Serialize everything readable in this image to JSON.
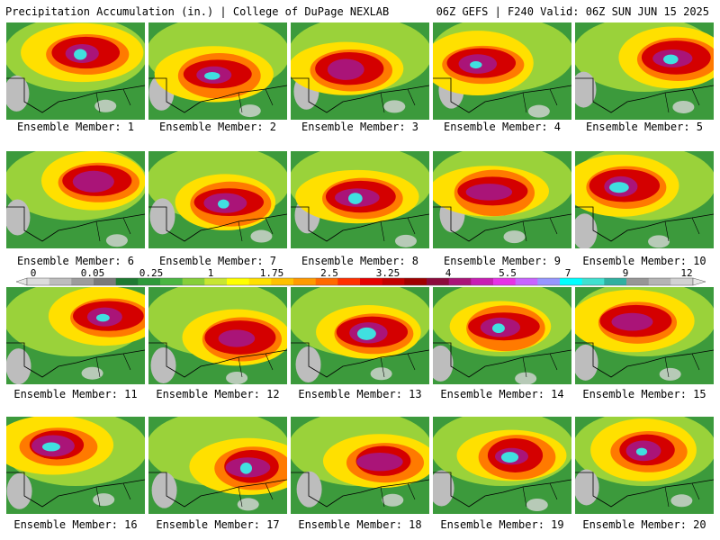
{
  "header": {
    "left": "Precipitation Accumulation (in.) | College of DuPage NEXLAB",
    "right": "06Z GEFS | F240 Valid: 06Z SUN JUN 15 2025"
  },
  "members": [
    {
      "label": "Ensemble Member: 1"
    },
    {
      "label": "Ensemble Member: 2"
    },
    {
      "label": "Ensemble Member: 3"
    },
    {
      "label": "Ensemble Member: 4"
    },
    {
      "label": "Ensemble Member: 5"
    },
    {
      "label": "Ensemble Member: 6"
    },
    {
      "label": "Ensemble Member: 7"
    },
    {
      "label": "Ensemble Member: 8"
    },
    {
      "label": "Ensemble Member: 9"
    },
    {
      "label": "Ensemble Member: 10"
    },
    {
      "label": "Ensemble Member: 11"
    },
    {
      "label": "Ensemble Member: 12"
    },
    {
      "label": "Ensemble Member: 13"
    },
    {
      "label": "Ensemble Member: 14"
    },
    {
      "label": "Ensemble Member: 15"
    },
    {
      "label": "Ensemble Member: 16"
    },
    {
      "label": "Ensemble Member: 17"
    },
    {
      "label": "Ensemble Member: 18"
    },
    {
      "label": "Ensemble Member: 19"
    },
    {
      "label": "Ensemble Member: 20"
    }
  ],
  "colorbar": {
    "labels": [
      "0",
      "0.05",
      "0.25",
      "1",
      "1.75",
      "2.5",
      "3.25",
      "4",
      "5.5",
      "7",
      "9",
      "12"
    ],
    "colors": [
      "#dcdcdc",
      "#bdbdbd",
      "#9c9c9c",
      "#7a7a7a",
      "#1e7a32",
      "#2e9a3a",
      "#4ab642",
      "#86cf3a",
      "#c8e632",
      "#ffff00",
      "#ffe000",
      "#ffc000",
      "#ff9a00",
      "#ff6a00",
      "#ff3000",
      "#e60000",
      "#c40000",
      "#a00000",
      "#8c0a3c",
      "#aa1478",
      "#c81eb4",
      "#e632e6",
      "#c864ff",
      "#9696ff",
      "#00ffff",
      "#40e0d0",
      "#30b0a0",
      "#969696",
      "#b4b4b4",
      "#d2d2d2"
    ]
  }
}
